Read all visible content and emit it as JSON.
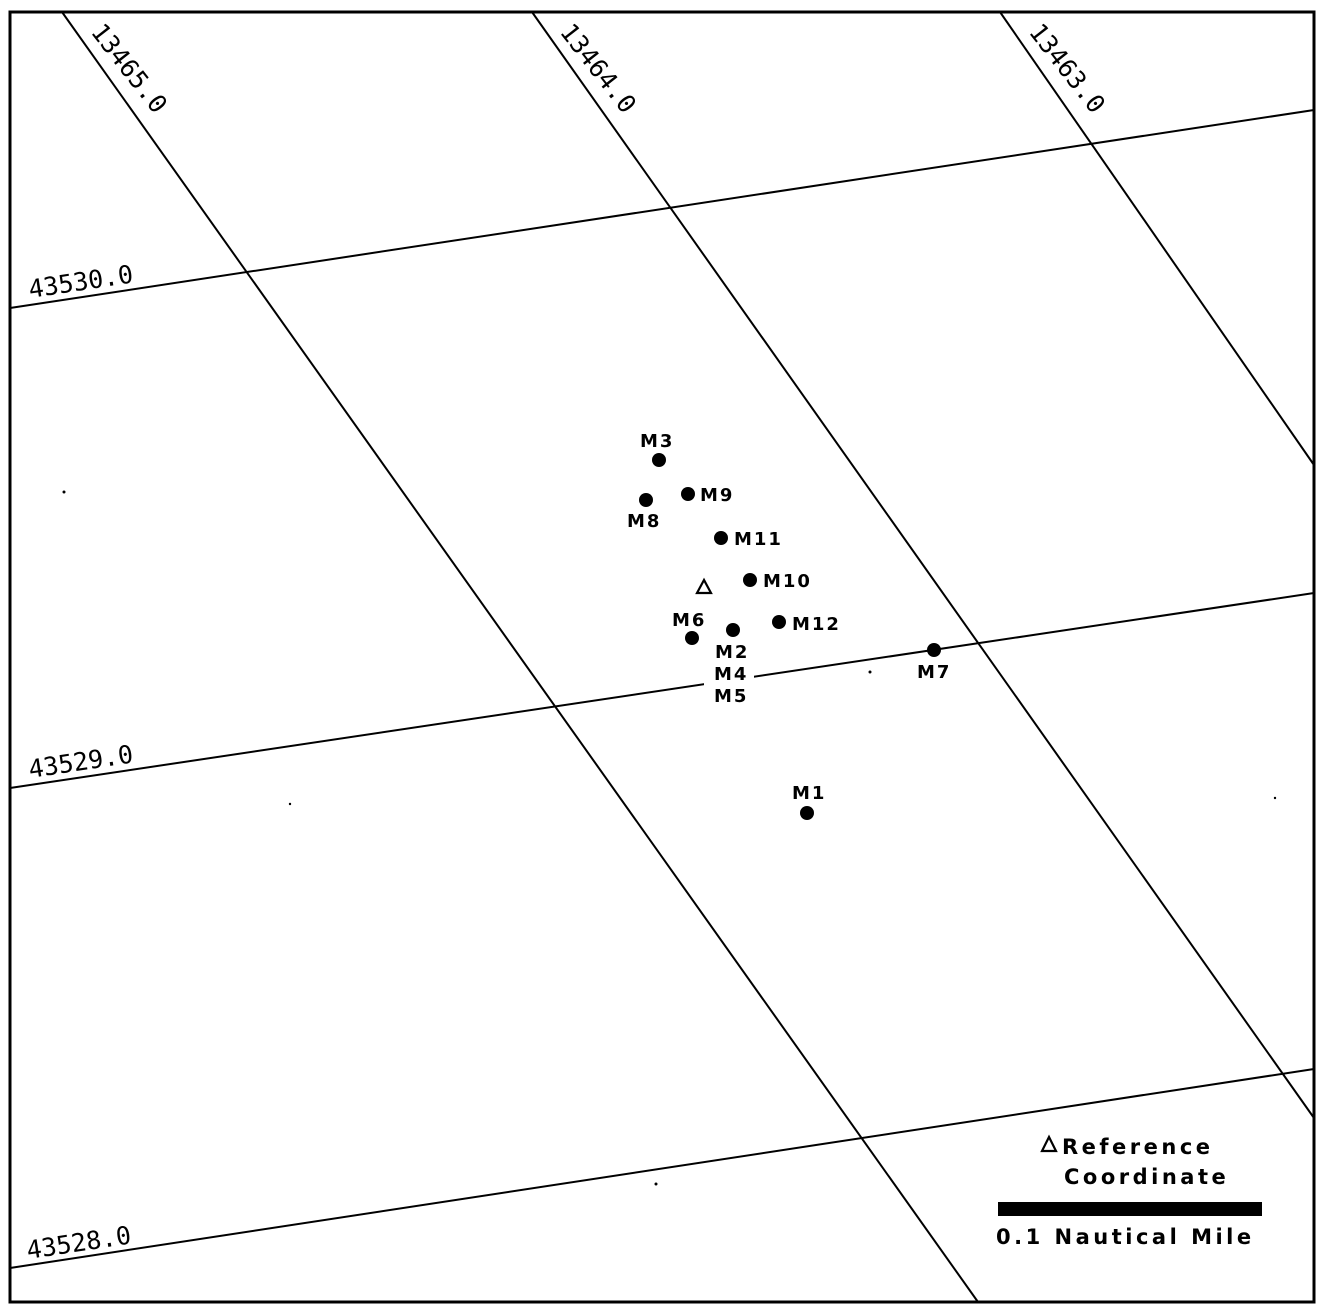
{
  "loran_lines": {
    "td_y": [
      "13465.0",
      "13464.0",
      "13463.0"
    ],
    "td_x": [
      "43530.0",
      "43529.0",
      "43528.0"
    ]
  },
  "markers": [
    {
      "id": "m1",
      "label": "M1"
    },
    {
      "id": "m2",
      "label": "M2"
    },
    {
      "id": "m3",
      "label": "M3"
    },
    {
      "id": "m4",
      "label": "M4"
    },
    {
      "id": "m5",
      "label": "M5"
    },
    {
      "id": "m6",
      "label": "M6"
    },
    {
      "id": "m7",
      "label": "M7"
    },
    {
      "id": "m8",
      "label": "M8"
    },
    {
      "id": "m9",
      "label": "M9"
    },
    {
      "id": "m10",
      "label": "M10"
    },
    {
      "id": "m11",
      "label": "M11"
    },
    {
      "id": "m12",
      "label": "M12"
    }
  ],
  "legend": {
    "reference_line1": "Reference",
    "reference_line2": "Coordinate",
    "scale_label": "0.1 Nautical Mile"
  }
}
